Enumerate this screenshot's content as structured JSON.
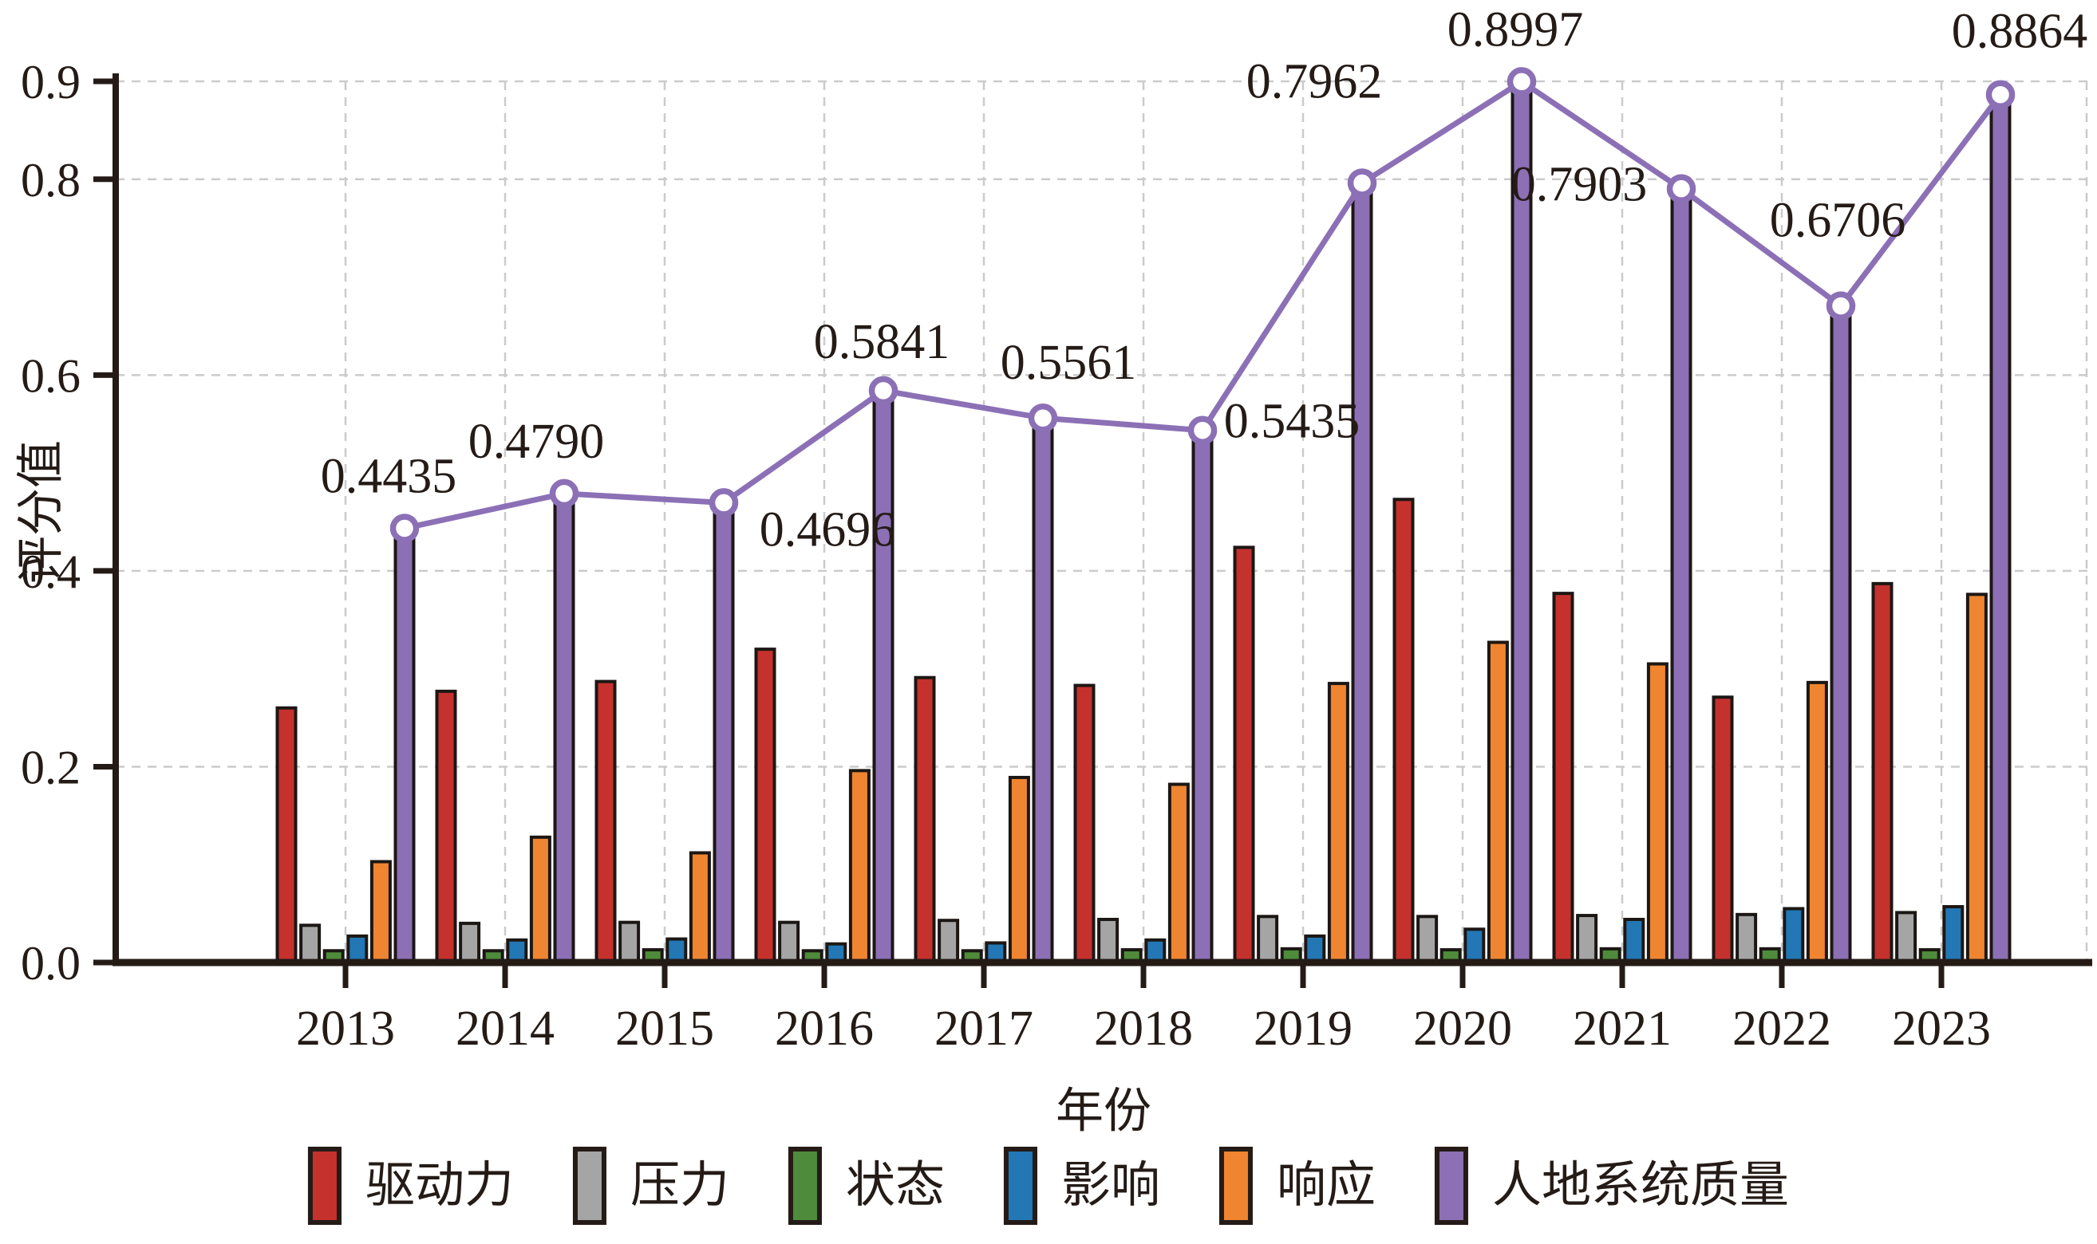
{
  "chart_data": {
    "type": "bar",
    "subtype": "grouped-bars-with-line-overlay",
    "title": "",
    "xlabel": "年份",
    "ylabel": "评分值",
    "categories": [
      "2013",
      "2014",
      "2015",
      "2016",
      "2017",
      "2018",
      "2019",
      "2020",
      "2021",
      "2022",
      "2023"
    ],
    "ylim": [
      0.0,
      0.9
    ],
    "ytick_values": [
      0.0,
      0.2,
      0.4,
      0.6,
      0.8,
      0.9
    ],
    "ytick_labels": [
      "0.0",
      "0.2",
      "0.4",
      "0.6",
      "0.8",
      "0.9"
    ],
    "grid": true,
    "gridline_color": "#cbcbcb",
    "axis_color": "#241b17",
    "bar_edge_color": "#1c1714",
    "legend_position": "bottom",
    "series": [
      {
        "key": "driving-force",
        "name": "驱动力",
        "color": "#c5312d",
        "role": "bar",
        "values": [
          0.26,
          0.277,
          0.287,
          0.32,
          0.291,
          0.283,
          0.424,
          0.473,
          0.377,
          0.271,
          0.387
        ]
      },
      {
        "key": "pressure",
        "name": "压力",
        "color": "#a5a5a5",
        "role": "bar",
        "values": [
          0.038,
          0.04,
          0.041,
          0.041,
          0.043,
          0.044,
          0.047,
          0.047,
          0.048,
          0.049,
          0.051
        ]
      },
      {
        "key": "state",
        "name": "状态",
        "color": "#4e8c3b",
        "role": "bar",
        "values": [
          0.012,
          0.012,
          0.013,
          0.012,
          0.012,
          0.013,
          0.014,
          0.013,
          0.014,
          0.014,
          0.013
        ]
      },
      {
        "key": "impact",
        "name": "影响",
        "color": "#2277b4",
        "role": "bar",
        "values": [
          0.027,
          0.023,
          0.024,
          0.019,
          0.02,
          0.023,
          0.027,
          0.034,
          0.044,
          0.055,
          0.057
        ]
      },
      {
        "key": "response",
        "name": "响应",
        "color": "#ef8530",
        "role": "bar",
        "values": [
          0.103,
          0.128,
          0.112,
          0.196,
          0.189,
          0.182,
          0.285,
          0.327,
          0.305,
          0.286,
          0.376
        ]
      },
      {
        "key": "human-land-system-quality",
        "name": "人地系统质量",
        "color": "#8c6fb4",
        "role": "bar+line",
        "line_color": "#8c70b6",
        "marker": "open-circle",
        "values": [
          0.4435,
          0.479,
          0.4696,
          0.5841,
          0.5561,
          0.5435,
          0.7962,
          0.8997,
          0.7903,
          0.6706,
          0.8864
        ],
        "point_labels": [
          "0.4435",
          "0.4790",
          "0.4696",
          "0.5841",
          "0.5561",
          "0.5435",
          "0.7962",
          "0.8997",
          "0.7903",
          "0.6706",
          "0.8864"
        ],
        "point_label_offsets": [
          [
            -20,
            -66
          ],
          [
            -35,
            -66
          ],
          [
            130,
            33
          ],
          [
            -2,
            -62
          ],
          [
            32,
            -70
          ],
          [
            112,
            -12
          ],
          [
            -60,
            -128
          ],
          [
            -8,
            -66
          ],
          [
            -128,
            -6
          ],
          [
            -4,
            -108
          ],
          [
            24,
            -80
          ]
        ]
      }
    ]
  }
}
